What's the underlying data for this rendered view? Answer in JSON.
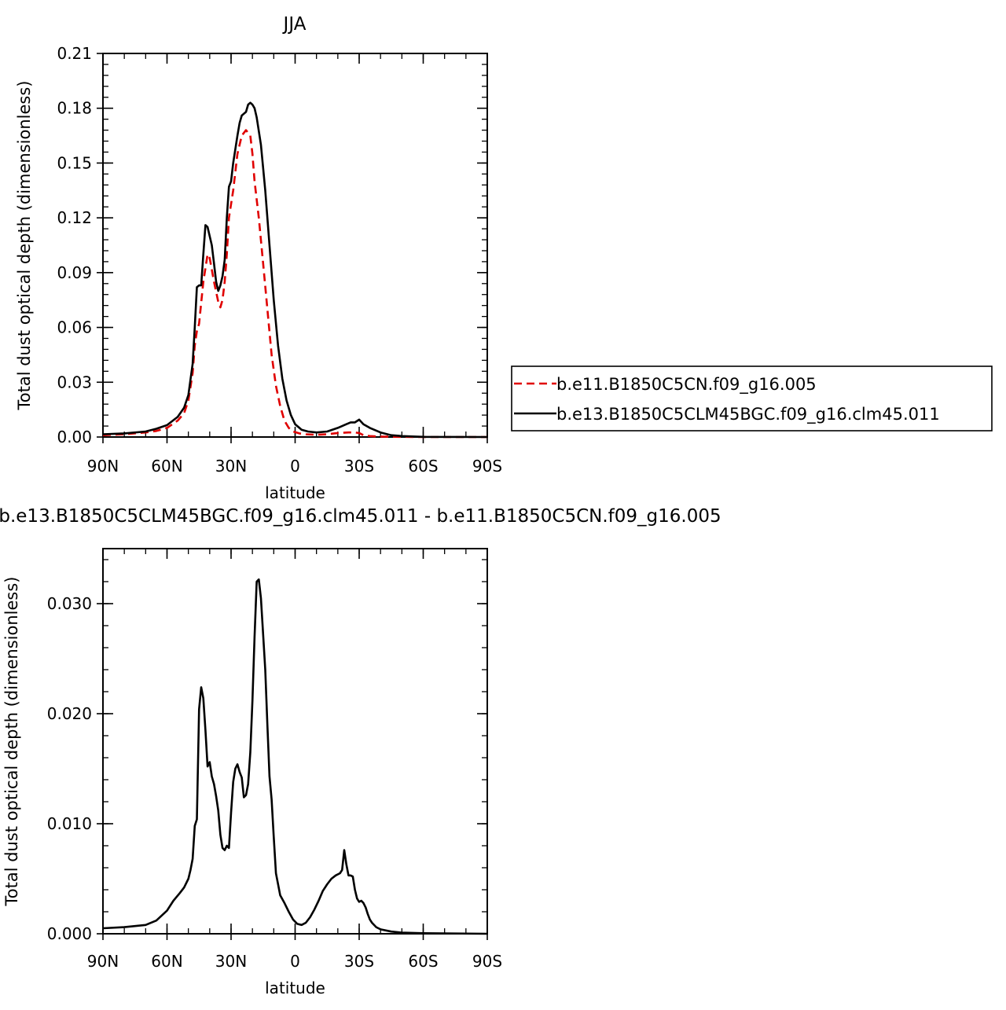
{
  "chart_data": [
    {
      "type": "line",
      "title": "JJA",
      "xlabel": "latitude",
      "ylabel": "Total dust optical depth (dimensionless)",
      "xlim": [
        90,
        -90
      ],
      "ylim": [
        0,
        0.21
      ],
      "x_ticks": [
        {
          "value": 90,
          "label": "90N"
        },
        {
          "value": 60,
          "label": "60N"
        },
        {
          "value": 30,
          "label": "30N"
        },
        {
          "value": 0,
          "label": "0"
        },
        {
          "value": -30,
          "label": "30S"
        },
        {
          "value": -60,
          "label": "60S"
        },
        {
          "value": -90,
          "label": "90S"
        }
      ],
      "y_ticks": [
        "0.00",
        "0.03",
        "0.06",
        "0.09",
        "0.12",
        "0.15",
        "0.18",
        "0.21"
      ],
      "y_tick_values": [
        0,
        0.03,
        0.06,
        0.09,
        0.12,
        0.15,
        0.18,
        0.21
      ],
      "legend_position": "right",
      "series": [
        {
          "name": "b.e11.B1850C5CN.f09_g16.005",
          "color": "#e00000",
          "dash": "dashed",
          "x": [
            90,
            80,
            70,
            65,
            60,
            55,
            52,
            50,
            48,
            47,
            46,
            45,
            43,
            41,
            40,
            38,
            36,
            35,
            34,
            33,
            32,
            31,
            29,
            27,
            25,
            23,
            21,
            20,
            19,
            17,
            15,
            13,
            11,
            9,
            7,
            5,
            3,
            1,
            -2,
            -5,
            -10,
            -15,
            -20,
            -25,
            -28,
            -30,
            -32,
            -35,
            -40,
            -50,
            -60,
            -90
          ],
          "y": [
            0.001,
            0.0015,
            0.0025,
            0.0033,
            0.005,
            0.009,
            0.013,
            0.02,
            0.035,
            0.05,
            0.058,
            0.062,
            0.085,
            0.1,
            0.098,
            0.085,
            0.074,
            0.071,
            0.075,
            0.085,
            0.1,
            0.12,
            0.135,
            0.155,
            0.165,
            0.168,
            0.165,
            0.155,
            0.14,
            0.12,
            0.095,
            0.07,
            0.045,
            0.028,
            0.017,
            0.009,
            0.005,
            0.003,
            0.002,
            0.0015,
            0.0012,
            0.0015,
            0.0022,
            0.0025,
            0.0025,
            0.0022,
            0.001,
            0.0005,
            0.0002,
            0.0001,
            0.0,
            0.0
          ]
        },
        {
          "name": "b.e13.B1850C5CLM45BGC.f09_g16.clm45.011",
          "color": "#000000",
          "dash": "solid",
          "x": [
            90,
            80,
            70,
            65,
            60,
            55,
            52,
            50,
            48,
            47,
            46,
            45,
            44,
            43,
            42,
            41,
            40,
            39,
            38,
            37,
            36,
            35,
            34,
            33,
            32,
            31,
            30,
            29,
            27,
            26,
            25,
            23,
            22,
            21,
            20,
            19,
            18,
            16,
            14,
            12,
            10,
            8,
            6,
            4,
            2,
            0,
            -3,
            -6,
            -10,
            -15,
            -20,
            -24,
            -26,
            -28,
            -30,
            -32,
            -35,
            -40,
            -45,
            -50,
            -60,
            -90
          ],
          "y": [
            0.0015,
            0.002,
            0.003,
            0.0045,
            0.0065,
            0.011,
            0.016,
            0.023,
            0.04,
            0.06,
            0.082,
            0.083,
            0.083,
            0.1,
            0.116,
            0.115,
            0.11,
            0.105,
            0.095,
            0.085,
            0.08,
            0.083,
            0.088,
            0.097,
            0.12,
            0.137,
            0.14,
            0.15,
            0.165,
            0.172,
            0.176,
            0.178,
            0.182,
            0.183,
            0.182,
            0.18,
            0.175,
            0.16,
            0.135,
            0.105,
            0.075,
            0.05,
            0.032,
            0.02,
            0.012,
            0.007,
            0.004,
            0.003,
            0.0025,
            0.003,
            0.005,
            0.007,
            0.008,
            0.008,
            0.0095,
            0.007,
            0.005,
            0.0025,
            0.001,
            0.0005,
            0.0001,
            0.0
          ]
        }
      ]
    },
    {
      "type": "line",
      "title": "b.e13.B1850C5CLM45BGC.f09_g16.clm45.011 - b.e11.B1850C5CN.f09_g16.005",
      "xlabel": "latitude",
      "ylabel": "Total dust optical depth (dimensionless)",
      "xlim": [
        90,
        -90
      ],
      "ylim": [
        0,
        0.035
      ],
      "x_ticks": [
        {
          "value": 90,
          "label": "90N"
        },
        {
          "value": 60,
          "label": "60N"
        },
        {
          "value": 30,
          "label": "30N"
        },
        {
          "value": 0,
          "label": "0"
        },
        {
          "value": -30,
          "label": "30S"
        },
        {
          "value": -60,
          "label": "60S"
        },
        {
          "value": -90,
          "label": "90S"
        }
      ],
      "y_ticks": [
        "0.000",
        "0.010",
        "0.020",
        "0.030"
      ],
      "y_tick_values": [
        0,
        0.01,
        0.02,
        0.03
      ],
      "series": [
        {
          "name": "",
          "color": "#000000",
          "dash": "solid",
          "x": [
            90,
            80,
            75,
            70,
            65,
            60,
            57,
            54,
            52,
            50,
            49,
            48,
            47,
            46,
            45,
            44,
            43,
            42,
            41,
            40,
            39,
            38,
            37,
            36,
            35,
            34,
            33,
            32,
            31,
            30,
            29,
            28,
            27,
            26,
            25,
            24,
            23,
            22,
            21,
            20,
            19,
            18,
            17,
            16,
            15,
            14,
            13,
            12,
            11,
            10,
            9,
            8,
            7,
            5,
            3,
            1,
            -1,
            -3,
            -5,
            -7,
            -9,
            -11,
            -13,
            -15,
            -17,
            -19,
            -21,
            -22,
            -23,
            -24,
            -25,
            -26,
            -27,
            -28,
            -29,
            -30,
            -31,
            -32,
            -33,
            -34,
            -35,
            -36,
            -38,
            -40,
            -45,
            -50,
            -60,
            -90
          ],
          "y": [
            0.0005,
            0.0006,
            0.0007,
            0.0008,
            0.0012,
            0.0021,
            0.003,
            0.0037,
            0.0042,
            0.005,
            0.0058,
            0.0068,
            0.0098,
            0.0104,
            0.0204,
            0.0224,
            0.0214,
            0.0185,
            0.0152,
            0.0156,
            0.0143,
            0.0136,
            0.0125,
            0.0112,
            0.009,
            0.0078,
            0.0076,
            0.008,
            0.0078,
            0.011,
            0.0138,
            0.015,
            0.0154,
            0.0147,
            0.0142,
            0.0124,
            0.0126,
            0.0136,
            0.0165,
            0.0212,
            0.027,
            0.032,
            0.0322,
            0.0305,
            0.0272,
            0.024,
            0.019,
            0.0143,
            0.0122,
            0.0088,
            0.0055,
            0.0045,
            0.0035,
            0.0028,
            0.002,
            0.0013,
            0.0009,
            0.0008,
            0.001,
            0.0015,
            0.0022,
            0.003,
            0.0039,
            0.0045,
            0.005,
            0.0053,
            0.0055,
            0.0058,
            0.0076,
            0.0063,
            0.0053,
            0.0053,
            0.0052,
            0.004,
            0.0032,
            0.0029,
            0.003,
            0.0028,
            0.0024,
            0.0018,
            0.0013,
            0.001,
            0.0006,
            0.0004,
            0.0002,
            0.0001,
            5e-05,
            0.0
          ]
        }
      ]
    }
  ]
}
